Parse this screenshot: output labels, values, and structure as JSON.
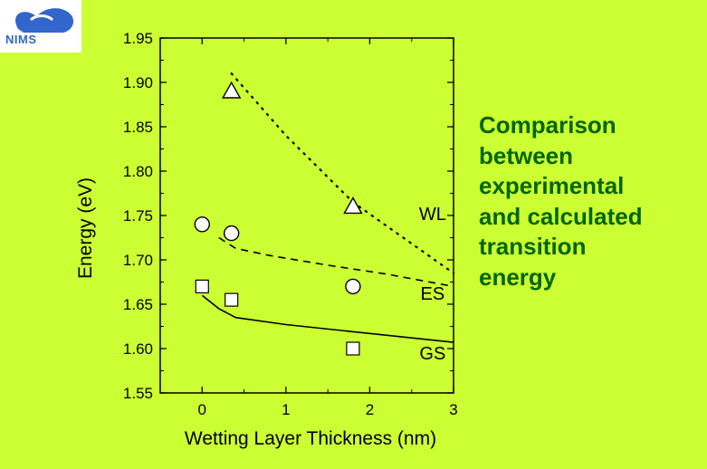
{
  "logo": {
    "text": "NIMS",
    "color": "#3366cc"
  },
  "side_note": {
    "lines": [
      "Comparison",
      "between",
      "experimental",
      "and calculated",
      "transition",
      "energy"
    ],
    "color": "#006600"
  },
  "chart_data": {
    "type": "scatter",
    "xlabel": "Wetting Layer Thickness (nm)",
    "ylabel": "Energy (eV)",
    "xlim": [
      -0.5,
      3
    ],
    "ylim": [
      1.55,
      1.95
    ],
    "xticks": [
      "0",
      "1",
      "2",
      "3"
    ],
    "yticks": [
      "1.55",
      "1.60",
      "1.65",
      "1.70",
      "1.75",
      "1.80",
      "1.85",
      "1.90",
      "1.95"
    ],
    "grid": false,
    "series": [
      {
        "name": "WL",
        "marker": "triangle",
        "points": [
          [
            0.35,
            1.89
          ],
          [
            1.8,
            1.76
          ]
        ]
      },
      {
        "name": "ES",
        "marker": "circle",
        "points": [
          [
            0.0,
            1.74
          ],
          [
            0.35,
            1.73
          ],
          [
            1.8,
            1.67
          ]
        ]
      },
      {
        "name": "GS",
        "marker": "square",
        "points": [
          [
            0.0,
            1.67
          ],
          [
            0.35,
            1.655
          ],
          [
            1.8,
            1.6
          ]
        ]
      }
    ],
    "lines": [
      {
        "series": "WL",
        "style": "dotted",
        "points": [
          [
            0.35,
            1.91
          ],
          [
            1.0,
            1.84
          ],
          [
            1.8,
            1.765
          ],
          [
            3.0,
            1.685
          ]
        ]
      },
      {
        "series": "ES",
        "style": "dashed",
        "points": [
          [
            0.2,
            1.725
          ],
          [
            0.4,
            1.713
          ],
          [
            0.8,
            1.705
          ],
          [
            1.5,
            1.694
          ],
          [
            2.2,
            1.684
          ],
          [
            3.0,
            1.67
          ]
        ]
      },
      {
        "series": "GS",
        "style": "solid",
        "points": [
          [
            0.0,
            1.66
          ],
          [
            0.2,
            1.645
          ],
          [
            0.4,
            1.635
          ],
          [
            1.0,
            1.627
          ],
          [
            2.0,
            1.617
          ],
          [
            3.0,
            1.607
          ]
        ]
      }
    ],
    "annotations": [
      {
        "text": "WL",
        "x": 2.75,
        "y": 1.745
      },
      {
        "text": "ES",
        "x": 2.75,
        "y": 1.655
      },
      {
        "text": "GS",
        "x": 2.75,
        "y": 1.588
      }
    ]
  }
}
